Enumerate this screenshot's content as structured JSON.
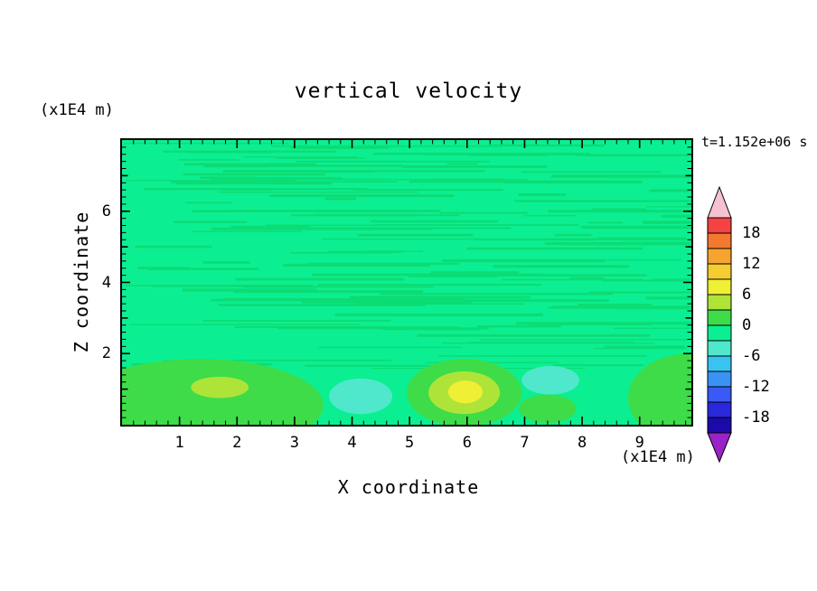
{
  "header": {
    "title": "vertical velocity",
    "time_label": "t=1.152e+06 s"
  },
  "axes": {
    "x_label": "X coordinate",
    "z_label": "Z coordinate",
    "x_unit": "(x1E4 m)",
    "z_unit": "(x1E4 m)"
  },
  "chart_data": {
    "type": "contour",
    "title": "vertical velocity",
    "xlabel": "X coordinate",
    "ylabel": "Z coordinate",
    "x_unit": "x1E4 m",
    "z_unit": "x1E4 m",
    "time_annotation": "t=1.152e+06 s",
    "x_range": [
      0,
      9.9
    ],
    "z_range": [
      0,
      8
    ],
    "x_ticks": [
      1,
      2,
      3,
      4,
      5,
      6,
      7,
      8,
      9
    ],
    "z_ticks": [
      2,
      4,
      6
    ],
    "x_minor_step": 0.2,
    "z_minor_step": 0.2,
    "contour_interval": 3,
    "background_color": "#0BEF92",
    "background_band": "-3 to 0",
    "field_description": "vertical velocity near zero (spring-green -3..0 band) over most of the domain; thin wavy 0..+3 streak bands layered between z=1.6 and z=7.9; convective anomalies below z=2: positive cells (up to +6..+9) near x=1.7 and x=6.0, negative patches (-3..-6) near x=4.2 and x=7.4, broad 0..+3 regions at both bottom corners",
    "streaks": {
      "color": "#0CDC74",
      "count": 150,
      "z_min": 1.6,
      "z_max": 7.92,
      "seed": 12345
    },
    "features": [
      {
        "cx": 1.35,
        "cy": 0.55,
        "rx": 2.15,
        "ry": 1.3,
        "band": "0..3",
        "color": "#3EDC48"
      },
      {
        "cx": 1.7,
        "cy": 1.05,
        "rx": 0.5,
        "ry": 0.3,
        "band": "3..6",
        "color": "#AEE438"
      },
      {
        "cx": 4.15,
        "cy": 0.8,
        "rx": 0.55,
        "ry": 0.5,
        "band": "-6..-3",
        "color": "#4FE8CC"
      },
      {
        "cx": 5.95,
        "cy": 0.9,
        "rx": 1.0,
        "ry": 0.95,
        "band": "0..3",
        "color": "#3EDC48"
      },
      {
        "cx": 5.95,
        "cy": 0.9,
        "rx": 0.62,
        "ry": 0.6,
        "band": "3..6",
        "color": "#AEE438"
      },
      {
        "cx": 5.97,
        "cy": 0.92,
        "rx": 0.3,
        "ry": 0.32,
        "band": "6..9",
        "color": "#EFEF34"
      },
      {
        "cx": 7.45,
        "cy": 1.25,
        "rx": 0.5,
        "ry": 0.4,
        "band": "-6..-3",
        "color": "#4FE8CC"
      },
      {
        "cx": 7.4,
        "cy": 0.45,
        "rx": 0.5,
        "ry": 0.4,
        "band": "0..3",
        "color": "#3EDC48"
      },
      {
        "cx": 9.85,
        "cy": 0.75,
        "rx": 1.05,
        "ry": 1.25,
        "band": "0..3",
        "color": "#3EDC48"
      }
    ],
    "colorbar": {
      "top_value": 21,
      "bottom_value": -21,
      "labels": [
        18,
        12,
        6,
        0,
        -6,
        -12,
        -18
      ],
      "over_color": "#F6C2D2",
      "under_color": "#9A23C8",
      "segments": [
        {
          "max": 21,
          "min": 18,
          "color": "#F54242"
        },
        {
          "max": 18,
          "min": 15,
          "color": "#F57830"
        },
        {
          "max": 15,
          "min": 12,
          "color": "#F5A430"
        },
        {
          "max": 12,
          "min": 9,
          "color": "#F5CC32"
        },
        {
          "max": 9,
          "min": 6,
          "color": "#EFEF34"
        },
        {
          "max": 6,
          "min": 3,
          "color": "#AEE438"
        },
        {
          "max": 3,
          "min": 0,
          "color": "#3EDC48"
        },
        {
          "max": 0,
          "min": -3,
          "color": "#0BEF92"
        },
        {
          "max": -3,
          "min": -6,
          "color": "#4FE8CC"
        },
        {
          "max": -6,
          "min": -9,
          "color": "#38C4F0"
        },
        {
          "max": -9,
          "min": -12,
          "color": "#3A92F5"
        },
        {
          "max": -12,
          "min": -15,
          "color": "#3A5AF5"
        },
        {
          "max": -15,
          "min": -18,
          "color": "#2A28DC"
        },
        {
          "max": -18,
          "min": -21,
          "color": "#1C0AA8"
        }
      ]
    }
  }
}
